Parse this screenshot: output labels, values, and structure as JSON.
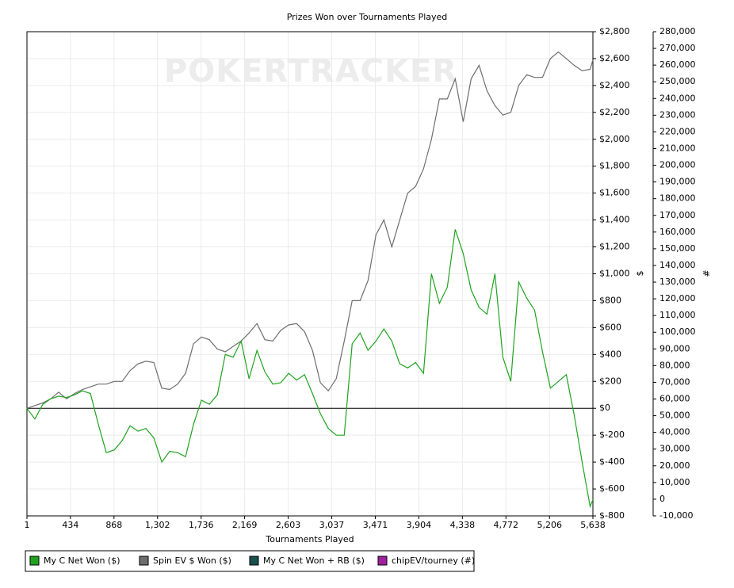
{
  "chart_data": {
    "type": "line",
    "title": "Prizes Won over Tournaments Played",
    "watermark": "POKERTRACKER",
    "x_label": "Tournaments Played",
    "y_label": "$",
    "y2_label": "#",
    "x": [
      1,
      80,
      159,
      238,
      317,
      396,
      475,
      554,
      633,
      712,
      791,
      870,
      949,
      1028,
      1107,
      1186,
      1265,
      1344,
      1423,
      1502,
      1581,
      1660,
      1739,
      1818,
      1897,
      1976,
      2055,
      2134,
      2213,
      2292,
      2371,
      2450,
      2529,
      2608,
      2687,
      2766,
      2845,
      2924,
      3003,
      3082,
      3161,
      3240,
      3319,
      3398,
      3477,
      3556,
      3635,
      3714,
      3793,
      3872,
      3951,
      4030,
      4109,
      4188,
      4267,
      4346,
      4425,
      4504,
      4583,
      4662,
      4741,
      4820,
      4899,
      4978,
      5057,
      5136,
      5215,
      5294,
      5373,
      5452,
      5531,
      5610,
      5638
    ],
    "series": [
      {
        "name": "My C Net Won ($)",
        "color": "#1fa31f",
        "values": [
          0,
          -80,
          30,
          70,
          90,
          80,
          100,
          130,
          110,
          -120,
          -330,
          -310,
          -240,
          -130,
          -170,
          -150,
          -220,
          -400,
          -320,
          -330,
          -360,
          -120,
          60,
          30,
          100,
          400,
          380,
          500,
          220,
          430,
          270,
          180,
          190,
          260,
          210,
          250,
          110,
          -40,
          -150,
          -200,
          -200,
          480,
          560,
          430,
          500,
          590,
          500,
          330,
          300,
          340,
          260,
          1000,
          780,
          900,
          1330,
          1150,
          880,
          750,
          700,
          1000,
          380,
          200,
          940,
          820,
          730,
          420,
          150,
          200,
          250,
          -50,
          -400,
          -730,
          -680
        ]
      },
      {
        "name": "Spin EV $ Won ($)",
        "color": "#6e6e6e",
        "values": [
          0,
          20,
          40,
          70,
          120,
          70,
          110,
          140,
          160,
          180,
          180,
          200,
          200,
          280,
          330,
          350,
          340,
          150,
          140,
          180,
          260,
          480,
          530,
          510,
          440,
          420,
          460,
          500,
          560,
          630,
          510,
          500,
          580,
          620,
          630,
          570,
          430,
          190,
          130,
          220,
          500,
          800,
          800,
          950,
          1290,
          1400,
          1200,
          1400,
          1600,
          1650,
          1780,
          2000,
          2300,
          2300,
          2450,
          2130,
          2450,
          2550,
          2360,
          2250,
          2180,
          2200,
          2400,
          2480,
          2460,
          2460,
          2600,
          2650,
          2600,
          2550,
          2510,
          2520,
          2590
        ]
      },
      {
        "name": "My C Net Won + RB ($)",
        "color": "#1a4f4f",
        "visible": false
      },
      {
        "name": "chipEV/tourney (#)",
        "color": "#a020a0",
        "axis": "y2",
        "visible": false
      }
    ],
    "xlim": [
      1,
      5638
    ],
    "xticks": [
      1,
      434,
      868,
      {
        "value": 1302,
        "label": "1,302"
      },
      {
        "value": 1736,
        "label": "1,736"
      },
      {
        "value": 2169,
        "label": "2,169"
      },
      {
        "value": 2603,
        "label": "2,603"
      },
      {
        "value": 3037,
        "label": "3,037"
      },
      {
        "value": 3471,
        "label": "3,471"
      },
      {
        "value": 3904,
        "label": "3,904"
      },
      {
        "value": 4338,
        "label": "4,338"
      },
      {
        "value": 4772,
        "label": "4,772"
      },
      {
        "value": 5206,
        "label": "5,206"
      },
      {
        "value": 5638,
        "label": "5,638"
      }
    ],
    "ylim": [
      -800,
      2800
    ],
    "yticks": [
      {
        "value": -800,
        "label": "$-800"
      },
      {
        "value": -600,
        "label": "$-600"
      },
      {
        "value": -400,
        "label": "$-400"
      },
      {
        "value": -200,
        "label": "$-200"
      },
      {
        "value": 0,
        "label": "$0"
      },
      {
        "value": 200,
        "label": "$200"
      },
      {
        "value": 400,
        "label": "$400"
      },
      {
        "value": 600,
        "label": "$600"
      },
      {
        "value": 800,
        "label": "$800"
      },
      {
        "value": 1000,
        "label": "$1,000"
      },
      {
        "value": 1200,
        "label": "$1,200"
      },
      {
        "value": 1400,
        "label": "$1,400"
      },
      {
        "value": 1600,
        "label": "$1,600"
      },
      {
        "value": 1800,
        "label": "$1,800"
      },
      {
        "value": 2000,
        "label": "$2,000"
      },
      {
        "value": 2200,
        "label": "$2,200"
      },
      {
        "value": 2400,
        "label": "$2,400"
      },
      {
        "value": 2600,
        "label": "$2,600"
      },
      {
        "value": 2800,
        "label": "$2,800"
      }
    ],
    "y2lim": [
      -10000,
      280000
    ],
    "y2ticks": [
      {
        "value": -10000,
        "label": "-10,000"
      },
      0,
      {
        "value": 10000,
        "label": "10,000"
      },
      {
        "value": 20000,
        "label": "20,000"
      },
      {
        "value": 30000,
        "label": "30,000"
      },
      {
        "value": 40000,
        "label": "40,000"
      },
      {
        "value": 50000,
        "label": "50,000"
      },
      {
        "value": 60000,
        "label": "60,000"
      },
      {
        "value": 70000,
        "label": "70,000"
      },
      {
        "value": 80000,
        "label": "80,000"
      },
      {
        "value": 90000,
        "label": "90,000"
      },
      {
        "value": 100000,
        "label": "100,000"
      },
      {
        "value": 110000,
        "label": "110,000"
      },
      {
        "value": 120000,
        "label": "120,000"
      },
      {
        "value": 130000,
        "label": "130,000"
      },
      {
        "value": 140000,
        "label": "140,000"
      },
      {
        "value": 150000,
        "label": "150,000"
      },
      {
        "value": 160000,
        "label": "160,000"
      },
      {
        "value": 170000,
        "label": "170,000"
      },
      {
        "value": 180000,
        "label": "180,000"
      },
      {
        "value": 190000,
        "label": "190,000"
      },
      {
        "value": 200000,
        "label": "200,000"
      },
      {
        "value": 210000,
        "label": "210,000"
      },
      {
        "value": 220000,
        "label": "220,000"
      },
      {
        "value": 230000,
        "label": "230,000"
      },
      {
        "value": 240000,
        "label": "240,000"
      },
      {
        "value": 250000,
        "label": "250,000"
      },
      {
        "value": 260000,
        "label": "260,000"
      },
      {
        "value": 270000,
        "label": "270,000"
      },
      {
        "value": 280000,
        "label": "280,000"
      }
    ],
    "grid": true,
    "zero_line": true,
    "legend": "bottom-left"
  }
}
